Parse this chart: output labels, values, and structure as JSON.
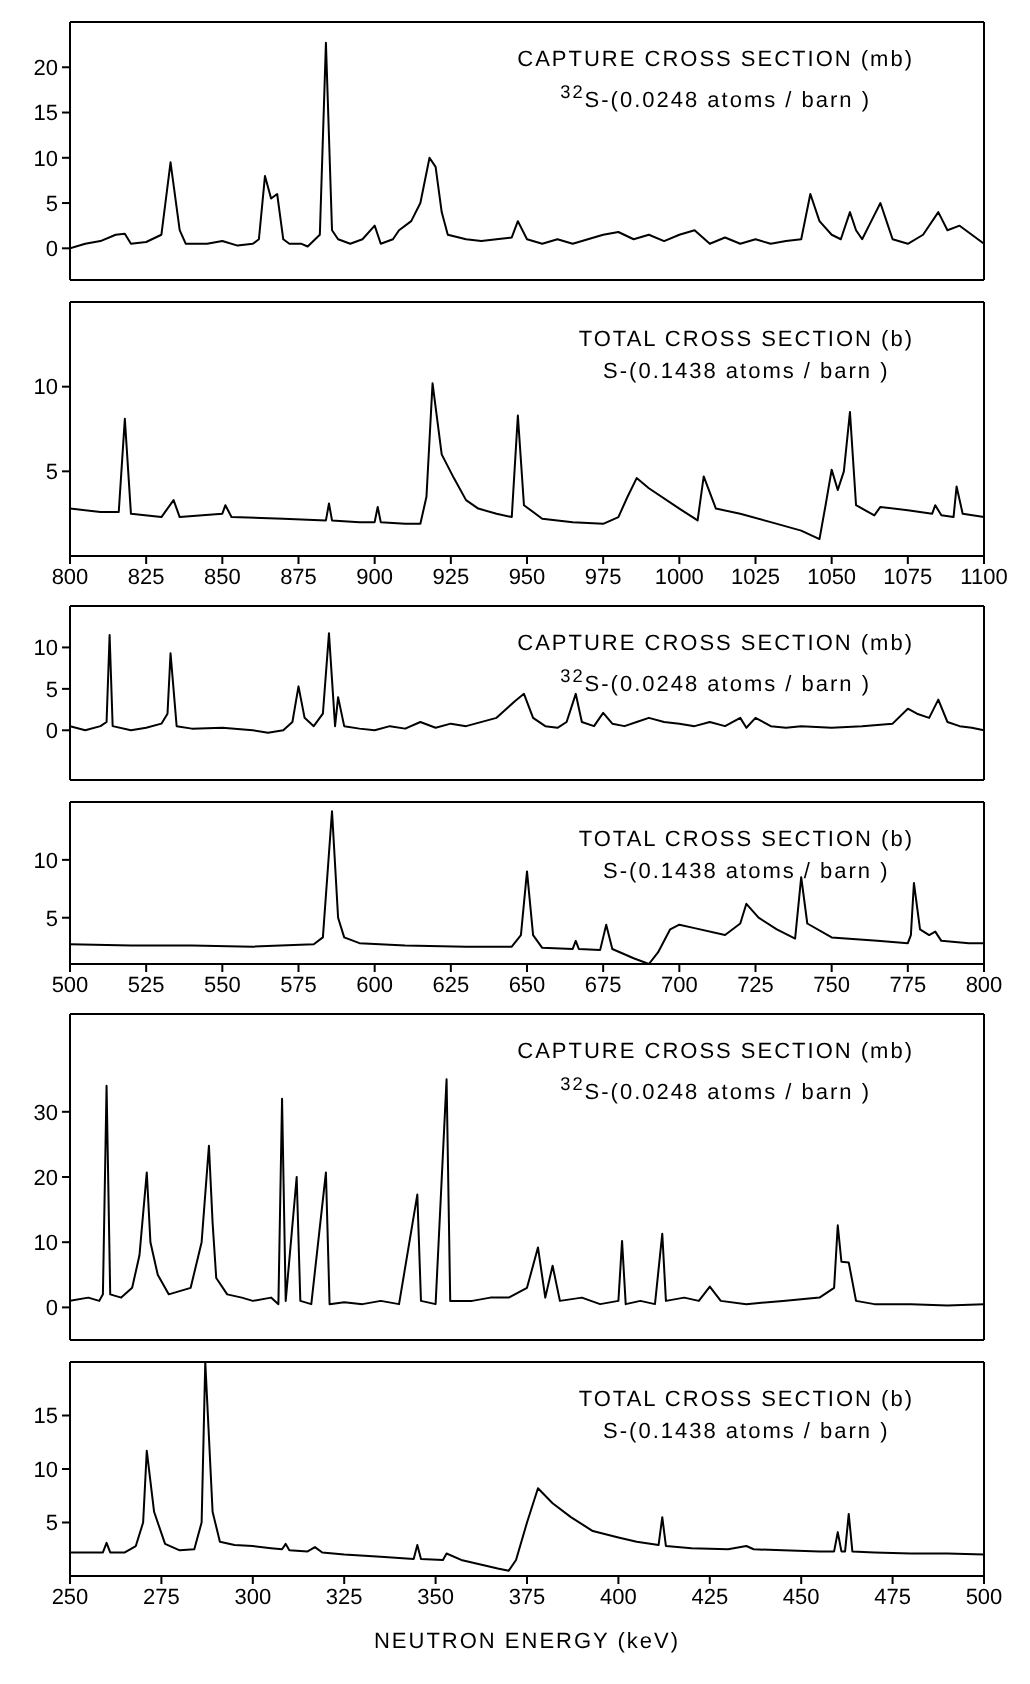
{
  "chart_data": [
    {
      "type": "line",
      "title": "CAPTURE CROSS SECTION (mb)",
      "subtitle": "$^{32}$S-(0.0248 atoms / barn )",
      "color": "#000000",
      "xlim": [
        800,
        1100
      ],
      "xticks": [
        800,
        825,
        850,
        875,
        900,
        925,
        950,
        975,
        1000,
        1025,
        1050,
        1075,
        1100
      ],
      "ylim": [
        -3.5,
        25
      ],
      "yticks": [
        0,
        5,
        10,
        15,
        20
      ],
      "tick_labels": "y",
      "x": [
        800,
        805,
        810,
        815,
        818,
        820,
        825,
        830,
        833,
        836,
        838,
        845,
        850,
        855,
        860,
        862,
        864,
        866,
        868,
        870,
        872,
        876,
        878,
        882,
        884,
        886,
        888,
        892,
        896,
        900,
        902,
        906,
        908,
        912,
        915,
        918,
        920,
        922,
        924,
        930,
        935,
        940,
        945,
        947,
        950,
        955,
        960,
        965,
        970,
        975,
        980,
        985,
        990,
        995,
        1000,
        1005,
        1010,
        1015,
        1020,
        1025,
        1030,
        1035,
        1040,
        1043,
        1046,
        1050,
        1053,
        1056,
        1058,
        1060,
        1063,
        1066,
        1068,
        1070,
        1075,
        1080,
        1085,
        1088,
        1092,
        1096,
        1100
      ],
      "values": [
        0,
        0.5,
        0.8,
        1.5,
        1.6,
        0.5,
        0.7,
        1.5,
        9.5,
        2,
        0.5,
        0.5,
        0.8,
        0.3,
        0.5,
        1,
        8,
        5.5,
        6,
        1,
        0.5,
        0.5,
        0.2,
        1.5,
        22.7,
        2,
        1,
        0.5,
        1,
        2.5,
        0.5,
        1,
        2,
        3,
        5,
        10,
        9,
        4,
        1.5,
        1,
        0.8,
        1,
        1.2,
        3,
        1,
        0.5,
        1,
        0.5,
        1,
        1.5,
        1.8,
        1,
        1.5,
        0.8,
        1.5,
        2,
        0.5,
        1.2,
        0.5,
        1,
        0.5,
        0.8,
        1,
        6,
        3,
        1.5,
        1,
        4,
        2,
        1,
        3,
        5,
        3,
        1,
        0.5,
        1.5,
        4,
        2,
        2.5,
        1.5,
        0.5
      ]
    },
    {
      "type": "line",
      "title": "TOTAL CROSS SECTION (b)",
      "subtitle": "S-(0.1438 atoms / barn )",
      "color": "#000000",
      "xlim": [
        800,
        1100
      ],
      "xticks": [
        800,
        825,
        850,
        875,
        900,
        925,
        950,
        975,
        1000,
        1025,
        1050,
        1075,
        1100
      ],
      "ylim": [
        0,
        15
      ],
      "yticks": [
        5,
        10
      ],
      "x": [
        800,
        810,
        816,
        818,
        820,
        830,
        834,
        836,
        850,
        851,
        853,
        870,
        884,
        885,
        886,
        895,
        900,
        901,
        902,
        910,
        915,
        917,
        919,
        922,
        926,
        930,
        934,
        940,
        945,
        947,
        949,
        955,
        965,
        975,
        980,
        983,
        986,
        990,
        1000,
        1006,
        1008,
        1012,
        1020,
        1030,
        1040,
        1046,
        1048,
        1050,
        1052,
        1054,
        1056,
        1058,
        1064,
        1066,
        1075,
        1083,
        1084,
        1086,
        1090,
        1091,
        1093,
        1100
      ],
      "values": [
        2.8,
        2.6,
        2.6,
        8.1,
        2.5,
        2.3,
        3.3,
        2.3,
        2.5,
        3.0,
        2.3,
        2.2,
        2.1,
        3.1,
        2.1,
        2.0,
        2.0,
        2.9,
        2.0,
        1.9,
        1.9,
        3.5,
        10.2,
        6,
        4.6,
        3.3,
        2.8,
        2.5,
        2.3,
        8.3,
        3,
        2.2,
        2.0,
        1.9,
        2.3,
        3.5,
        4.6,
        4.0,
        2.8,
        2.1,
        4.7,
        2.8,
        2.5,
        2.0,
        1.5,
        1.0,
        3.0,
        5.1,
        3.9,
        5,
        8.5,
        3.0,
        2.4,
        2.9,
        2.7,
        2.5,
        3.0,
        2.4,
        2.3,
        4.1,
        2.5,
        2.3
      ]
    },
    {
      "type": "line",
      "title": "CAPTURE CROSS SECTION (mb)",
      "subtitle": "$^{32}$S-(0.0248 atoms / barn )",
      "color": "#000000",
      "xlim": [
        500,
        800
      ],
      "xticks": [
        500,
        525,
        550,
        575,
        600,
        625,
        650,
        675,
        700,
        725,
        750,
        775,
        800
      ],
      "ylim": [
        -6,
        15
      ],
      "yticks": [
        0,
        5,
        10
      ],
      "tick_labels": "y",
      "x": [
        500,
        505,
        510,
        512,
        513,
        514,
        520,
        525,
        530,
        532,
        533,
        535,
        540,
        550,
        560,
        565,
        570,
        573,
        575,
        577,
        580,
        583,
        585,
        587,
        588,
        590,
        595,
        600,
        605,
        610,
        615,
        620,
        625,
        630,
        640,
        643,
        646,
        649,
        652,
        656,
        660,
        663,
        666,
        668,
        672,
        675,
        678,
        682,
        686,
        690,
        695,
        700,
        705,
        710,
        715,
        720,
        722,
        725,
        730,
        735,
        740,
        750,
        760,
        770,
        775,
        778,
        782,
        785,
        788,
        792,
        796,
        800
      ],
      "values": [
        0.5,
        0,
        0.5,
        1,
        11.5,
        0.5,
        0,
        0.3,
        0.8,
        2,
        9.3,
        0.5,
        0.2,
        0.3,
        0,
        -0.3,
        0,
        1,
        5.3,
        1.5,
        0.5,
        2,
        11.7,
        0.5,
        4,
        0.5,
        0.2,
        0,
        0.5,
        0.2,
        1,
        0.3,
        0.8,
        0.5,
        1.5,
        2.5,
        3.5,
        4.4,
        1.5,
        0.5,
        0.3,
        1,
        4.4,
        1,
        0.5,
        2.1,
        0.8,
        0.5,
        1.0,
        1.5,
        1.0,
        0.8,
        0.5,
        1.0,
        0.5,
        1.5,
        0.3,
        1.5,
        0.5,
        0.3,
        0.5,
        0.3,
        0.5,
        0.8,
        2.6,
        2,
        1.5,
        3.7,
        1.0,
        0.5,
        0.3,
        0
      ]
    },
    {
      "type": "line",
      "title": "TOTAL CROSS SECTION (b)",
      "subtitle": "S-(0.1438 atoms / barn )",
      "color": "#000000",
      "xlim": [
        500,
        800
      ],
      "xticks": [
        500,
        525,
        550,
        575,
        600,
        625,
        650,
        675,
        700,
        725,
        750,
        775,
        800
      ],
      "ylim": [
        1,
        15
      ],
      "yticks": [
        5,
        10
      ],
      "x": [
        500,
        520,
        540,
        560,
        580,
        583,
        586,
        588,
        590,
        595,
        610,
        630,
        645,
        648,
        650,
        652,
        655,
        665,
        666,
        667,
        674,
        676,
        678,
        685,
        690,
        693,
        697,
        700,
        705,
        715,
        720,
        722,
        726,
        732,
        738,
        740,
        742,
        750,
        765,
        775,
        776,
        777,
        779,
        782,
        784,
        786,
        795,
        800
      ],
      "values": [
        2.7,
        2.6,
        2.6,
        2.5,
        2.7,
        3.3,
        14.2,
        5,
        3.3,
        2.8,
        2.6,
        2.5,
        2.5,
        3.5,
        9.0,
        3.5,
        2.4,
        2.3,
        3.0,
        2.3,
        2.2,
        4.4,
        2.3,
        1.5,
        1.0,
        2.0,
        4.0,
        4.4,
        4.1,
        3.5,
        4.5,
        6.2,
        5,
        4.0,
        3.2,
        8.5,
        4.5,
        3.3,
        3.0,
        2.8,
        3.5,
        8.0,
        4,
        3.5,
        3.8,
        3.0,
        2.8,
        2.8
      ]
    },
    {
      "type": "line",
      "title": "CAPTURE CROSS SECTION (mb)",
      "subtitle": "$^{32}$S-(0.0248 atoms / barn )",
      "color": "#000000",
      "xlim": [
        250,
        500
      ],
      "xticks": [
        250,
        275,
        300,
        325,
        350,
        375,
        400,
        425,
        450,
        475,
        500
      ],
      "ylim": [
        -5,
        45
      ],
      "yticks": [
        0,
        10,
        20,
        30
      ],
      "tick_labels": "y",
      "x": [
        250,
        255,
        258,
        259,
        260,
        261,
        264,
        267,
        269,
        271,
        272,
        274,
        277,
        280,
        283,
        286,
        288,
        289,
        290,
        293,
        297,
        300,
        305,
        307,
        308,
        309,
        312,
        313,
        316,
        320,
        321,
        325,
        330,
        335,
        340,
        345,
        346,
        350,
        353,
        354,
        360,
        365,
        370,
        375,
        378,
        380,
        382,
        384,
        390,
        395,
        400,
        401,
        402,
        406,
        410,
        412,
        413,
        418,
        422,
        425,
        428,
        435,
        445,
        455,
        459,
        460,
        461,
        463,
        465,
        470,
        480,
        490,
        500
      ],
      "values": [
        1,
        1.5,
        1,
        2,
        34,
        2,
        1.5,
        3,
        8,
        20.7,
        10,
        5,
        2,
        2.5,
        3,
        10,
        24.8,
        13,
        4.5,
        2,
        1.5,
        1.0,
        1.5,
        0.5,
        32,
        1,
        20,
        1,
        0.5,
        20.7,
        0.5,
        0.8,
        0.5,
        1,
        0.5,
        17.3,
        1,
        0.5,
        35,
        1,
        1,
        1.5,
        1.5,
        3,
        9.2,
        1.5,
        6.4,
        1,
        1.5,
        0.5,
        1,
        10.2,
        0.5,
        1,
        0.5,
        11.3,
        1,
        1.5,
        1,
        3.2,
        1,
        0.5,
        1,
        1.5,
        3,
        12.6,
        7,
        6.9,
        1,
        0.5,
        0.5,
        0.3,
        0.5
      ]
    },
    {
      "type": "line",
      "title": "TOTAL CROSS SECTION (b)",
      "subtitle": "S-(0.1438 atoms / barn )",
      "xlabel": "NEUTRON ENERGY (keV)",
      "color": "#000000",
      "xlim": [
        250,
        500
      ],
      "xticks": [
        250,
        275,
        300,
        325,
        350,
        375,
        400,
        425,
        450,
        475,
        500
      ],
      "ylim": [
        0,
        20
      ],
      "yticks": [
        5,
        10,
        15
      ],
      "x": [
        250,
        255,
        259,
        260,
        261,
        265,
        268,
        270,
        271,
        273,
        276,
        280,
        284,
        286,
        287,
        289,
        291,
        295,
        300,
        305,
        308,
        309,
        310,
        315,
        317,
        319,
        325,
        335,
        344,
        345,
        346,
        352,
        353,
        357,
        362,
        367,
        370,
        372,
        375,
        378,
        382,
        387,
        393,
        400,
        405,
        411,
        412,
        413,
        420,
        430,
        435,
        437,
        445,
        455,
        459,
        460,
        461,
        462,
        463,
        464,
        470,
        480,
        490,
        500
      ],
      "values": [
        2.2,
        2.2,
        2.2,
        3.1,
        2.2,
        2.2,
        2.8,
        5,
        11.7,
        6,
        3,
        2.4,
        2.5,
        5,
        20,
        6,
        3.2,
        2.9,
        2.8,
        2.6,
        2.5,
        3.0,
        2.4,
        2.3,
        2.7,
        2.2,
        2.0,
        1.8,
        1.6,
        2.9,
        1.6,
        1.5,
        2.1,
        1.5,
        1.1,
        0.7,
        0.5,
        1.5,
        5,
        8.2,
        6.8,
        5.5,
        4.2,
        3.6,
        3.2,
        2.9,
        5.5,
        2.8,
        2.6,
        2.5,
        2.8,
        2.5,
        2.4,
        2.3,
        2.3,
        4.1,
        2.3,
        2.3,
        5.8,
        2.3,
        2.2,
        2.1,
        2.1,
        2.0
      ]
    }
  ]
}
